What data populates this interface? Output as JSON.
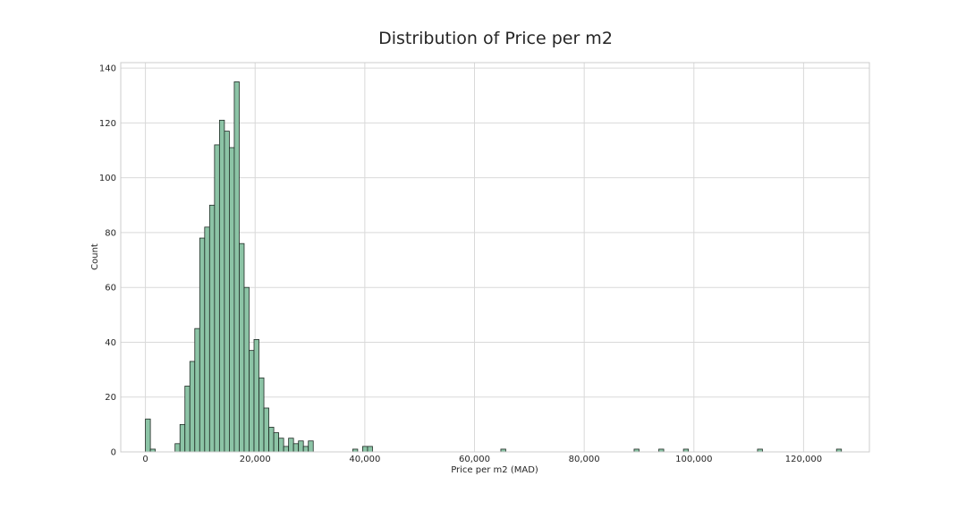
{
  "chart_data": {
    "type": "bar",
    "title": "Distribution of Price per m2",
    "xlabel": "Price per m2 (MAD)",
    "ylabel": "Count",
    "xlim": [
      -4500,
      132000
    ],
    "ylim": [
      0,
      142
    ],
    "grid": true,
    "bar_color": "#8cc4a6",
    "edge_color": "#1f2a24",
    "bin_width": 900,
    "x_ticks": [
      0,
      20000,
      40000,
      60000,
      80000,
      100000,
      120000
    ],
    "x_tick_labels": [
      "0",
      "20,000",
      "40,000",
      "60,000",
      "80,000",
      "100,000",
      "120,000"
    ],
    "y_ticks": [
      0,
      20,
      40,
      60,
      80,
      100,
      120,
      140
    ],
    "y_tick_labels": [
      "0",
      "20",
      "40",
      "60",
      "80",
      "100",
      "120",
      "140"
    ],
    "bins": [
      {
        "x": 0,
        "count": 12
      },
      {
        "x": 900,
        "count": 1
      },
      {
        "x": 5400,
        "count": 3
      },
      {
        "x": 6300,
        "count": 10
      },
      {
        "x": 7200,
        "count": 24
      },
      {
        "x": 8100,
        "count": 33
      },
      {
        "x": 9000,
        "count": 45
      },
      {
        "x": 9900,
        "count": 78
      },
      {
        "x": 10800,
        "count": 82
      },
      {
        "x": 11700,
        "count": 90
      },
      {
        "x": 12600,
        "count": 112
      },
      {
        "x": 13500,
        "count": 121
      },
      {
        "x": 14400,
        "count": 117
      },
      {
        "x": 15300,
        "count": 111
      },
      {
        "x": 16200,
        "count": 135
      },
      {
        "x": 17100,
        "count": 76
      },
      {
        "x": 18000,
        "count": 60
      },
      {
        "x": 18900,
        "count": 37
      },
      {
        "x": 19800,
        "count": 41
      },
      {
        "x": 20700,
        "count": 27
      },
      {
        "x": 21600,
        "count": 16
      },
      {
        "x": 22500,
        "count": 9
      },
      {
        "x": 23400,
        "count": 7
      },
      {
        "x": 24300,
        "count": 5
      },
      {
        "x": 25200,
        "count": 2
      },
      {
        "x": 26100,
        "count": 5
      },
      {
        "x": 27000,
        "count": 3
      },
      {
        "x": 27900,
        "count": 4
      },
      {
        "x": 28800,
        "count": 2
      },
      {
        "x": 29700,
        "count": 4
      },
      {
        "x": 37800,
        "count": 1
      },
      {
        "x": 39600,
        "count": 2
      },
      {
        "x": 40500,
        "count": 2
      },
      {
        "x": 64800,
        "count": 1
      },
      {
        "x": 89100,
        "count": 1
      },
      {
        "x": 93600,
        "count": 1
      },
      {
        "x": 98100,
        "count": 1
      },
      {
        "x": 111600,
        "count": 1
      },
      {
        "x": 126000,
        "count": 1
      }
    ]
  }
}
